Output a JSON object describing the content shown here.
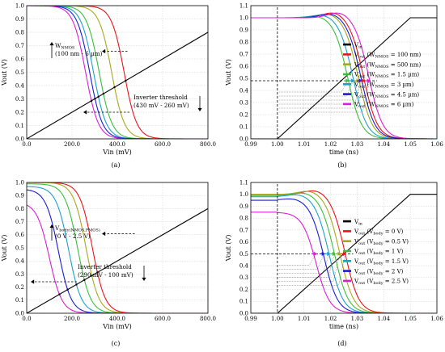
{
  "chart_data": [
    {
      "id": "a",
      "type": "line",
      "caption": "(a)",
      "xlabel": "Vin (mV)",
      "ylabel": "Vout (V)",
      "xlim": [
        0,
        800
      ],
      "ylim": [
        0,
        1.0
      ],
      "xticks": [
        0,
        200,
        400,
        600,
        800
      ],
      "xtick_labels": [
        "0.0",
        "200.0",
        "400.0",
        "600.0",
        "800.0"
      ],
      "yticks": [
        0,
        0.1,
        0.2,
        0.3,
        0.4,
        0.5,
        0.6,
        0.7,
        0.8,
        0.9,
        1.0
      ],
      "ytick_labels": [
        "0.0",
        "0.1",
        "0.2",
        "0.3",
        "0.4",
        "0.5",
        "0.6",
        "0.7",
        "0.8",
        "0.9",
        "1.0"
      ],
      "grid": true,
      "kind": "vtc",
      "curve_steepness": 28,
      "vin_line": {
        "x": [
          0,
          800
        ],
        "y": [
          0,
          0.8
        ],
        "color": "#000000"
      },
      "series": [
        {
          "color": "#e8141c",
          "vm": 430,
          "vmax": 1.0
        },
        {
          "color": "#a8a81c",
          "vm": 375,
          "vmax": 1.0
        },
        {
          "color": "#3cbe3c",
          "vm": 320,
          "vmax": 1.0
        },
        {
          "color": "#1ea0c8",
          "vm": 295,
          "vmax": 1.0
        },
        {
          "color": "#1c1cd2",
          "vm": 278,
          "vmax": 1.0
        },
        {
          "color": "#dc1ed2",
          "vm": 260,
          "vmax": 1.0
        }
      ],
      "annotations": [
        {
          "lines": [
            "W|NMOS",
            "(100 nm - 6 µm)"
          ]
        },
        {
          "lines": [
            "Inverter threshold",
            "(430 mV - 260 mV)"
          ]
        }
      ]
    },
    {
      "id": "b",
      "type": "line",
      "caption": "(b)",
      "xlabel": "time (ns)",
      "ylabel": "Vout (V)",
      "xlim": [
        0.99,
        1.06
      ],
      "ylim": [
        0,
        1.1
      ],
      "xticks": [
        0.99,
        1.0,
        1.01,
        1.02,
        1.03,
        1.04,
        1.05,
        1.06
      ],
      "xtick_labels": [
        "0.99",
        "1.00",
        "1.01",
        "1.02",
        "1.03",
        "1.04",
        "1.05",
        "1.06"
      ],
      "yticks": [
        0,
        0.1,
        0.2,
        0.3,
        0.4,
        0.5,
        0.6,
        0.7,
        0.8,
        0.9,
        1.0,
        1.1
      ],
      "ytick_labels": [
        "0.0",
        "0.1",
        "0.2",
        "0.3",
        "0.4",
        "0.5",
        "0.6",
        "0.7",
        "0.8",
        "0.9",
        "1.0",
        "1.1"
      ],
      "grid": true,
      "kind": "transient",
      "half_level": 0.48,
      "vin_line": {
        "x": [
          0.99,
          1.0,
          1.05,
          1.06
        ],
        "y": [
          0,
          0,
          1.0,
          1.0
        ],
        "color": "#000000"
      },
      "series": [
        {
          "color": "#e8141c",
          "v0": 1.0,
          "t50": 1.0325,
          "tau": 0.0026,
          "overshoot": 0.05
        },
        {
          "color": "#a8a81c",
          "v0": 1.0,
          "t50": 1.0305,
          "tau": 0.0026,
          "overshoot": 0.04
        },
        {
          "color": "#3cbe3c",
          "v0": 1.0,
          "t50": 1.0265,
          "tau": 0.0026,
          "overshoot": 0.02
        },
        {
          "color": "#1ea0c8",
          "v0": 1.0,
          "t50": 1.0285,
          "tau": 0.0026,
          "overshoot": 0.03
        },
        {
          "color": "#1c1cd2",
          "v0": 1.0,
          "t50": 1.0315,
          "tau": 0.0026,
          "overshoot": 0.04
        },
        {
          "color": "#dc1ed2",
          "v0": 1.0,
          "t50": 1.0345,
          "tau": 0.0026,
          "overshoot": 0.05
        }
      ],
      "legend": {
        "placement": "right",
        "entries": [
          {
            "color": "#000000",
            "label": "V|in"
          },
          {
            "color": "#e8141c",
            "label": "V|out| (W|NMOS| = 100 nm)"
          },
          {
            "color": "#a8a81c",
            "label": "V|out| (W|NMOS| = 500 nm)"
          },
          {
            "color": "#3cbe3c",
            "label": "V|out| (W|NMOS| = 1.5 µm)"
          },
          {
            "color": "#1ea0c8",
            "label": "V|out| (W|NMOS| = 3 µm)"
          },
          {
            "color": "#1c1cd2",
            "label": "V|out| (W|NMOS| = 4.5 µm)"
          },
          {
            "color": "#dc1ed2",
            "label": "V|out| (W|NMOS| = 6 µm)"
          }
        ]
      }
    },
    {
      "id": "c",
      "type": "line",
      "caption": "(c)",
      "xlabel": "Vin (mV)",
      "ylabel": "Vout (V)",
      "xlim": [
        0,
        800
      ],
      "ylim": [
        0,
        1.0
      ],
      "xticks": [
        0,
        200,
        400,
        600,
        800
      ],
      "xtick_labels": [
        "0.0",
        "200.0",
        "400.0",
        "600.0",
        "800.0"
      ],
      "yticks": [
        0,
        0.1,
        0.2,
        0.3,
        0.4,
        0.5,
        0.6,
        0.7,
        0.8,
        0.9,
        1.0
      ],
      "ytick_labels": [
        "0.0",
        "0.1",
        "0.2",
        "0.3",
        "0.4",
        "0.5",
        "0.6",
        "0.7",
        "0.8",
        "0.9",
        "1.0"
      ],
      "grid": true,
      "kind": "vtc",
      "curve_steepness": 28,
      "vin_line": {
        "x": [
          0,
          800
        ],
        "y": [
          0,
          0.8
        ],
        "color": "#000000"
      },
      "series": [
        {
          "color": "#e8141c",
          "vm": 290,
          "vmax": 1.0
        },
        {
          "color": "#a8a81c",
          "vm": 262,
          "vmax": 1.0
        },
        {
          "color": "#3cbe3c",
          "vm": 225,
          "vmax": 0.99
        },
        {
          "color": "#1ea0c8",
          "vm": 185,
          "vmax": 0.97
        },
        {
          "color": "#1c1cd2",
          "vm": 140,
          "vmax": 0.95
        },
        {
          "color": "#dc1ed2",
          "vm": 100,
          "vmax": 0.85
        }
      ],
      "annotations": [
        {
          "lines": [
            "V|body(NMOS,PMOS)",
            "(0 V - 2.5 V)"
          ]
        },
        {
          "lines": [
            "Inverter threshold",
            "(290 mV - 100 mV)"
          ]
        }
      ]
    },
    {
      "id": "d",
      "type": "line",
      "caption": "(d)",
      "xlabel": "time (ns)",
      "ylabel": "Vout (V)",
      "xlim": [
        0.99,
        1.06
      ],
      "ylim": [
        0,
        1.1
      ],
      "xticks": [
        0.99,
        1.0,
        1.01,
        1.02,
        1.03,
        1.04,
        1.05,
        1.06
      ],
      "xtick_labels": [
        "0.99",
        "1.00",
        "1.01",
        "1.02",
        "1.03",
        "1.04",
        "1.05",
        "1.06"
      ],
      "yticks": [
        0,
        0.1,
        0.2,
        0.3,
        0.4,
        0.5,
        0.6,
        0.7,
        0.8,
        0.9,
        1.0,
        1.1
      ],
      "ytick_labels": [
        "0.0",
        "0.1",
        "0.2",
        "0.3",
        "0.4",
        "0.5",
        "0.6",
        "0.7",
        "0.8",
        "0.9",
        "1.0",
        "1.1"
      ],
      "grid": true,
      "kind": "transient",
      "half_level": 0.5,
      "vin_line": {
        "x": [
          0.99,
          1.0,
          1.05,
          1.06
        ],
        "y": [
          0,
          0,
          1.0,
          1.0
        ],
        "color": "#000000"
      },
      "series": [
        {
          "color": "#e8141c",
          "v0": 1.0,
          "t50": 1.0255,
          "tau": 0.0026,
          "overshoot": 0.04
        },
        {
          "color": "#a8a81c",
          "v0": 1.0,
          "t50": 1.0235,
          "tau": 0.0026,
          "overshoot": 0.035
        },
        {
          "color": "#3cbe3c",
          "v0": 0.99,
          "t50": 1.0215,
          "tau": 0.0026,
          "overshoot": 0.03
        },
        {
          "color": "#1ea0c8",
          "v0": 0.98,
          "t50": 1.0195,
          "tau": 0.0026,
          "overshoot": 0.025
        },
        {
          "color": "#1c1cd2",
          "v0": 0.95,
          "t50": 1.0175,
          "tau": 0.0026,
          "overshoot": 0.02
        },
        {
          "color": "#dc1ed2",
          "v0": 0.85,
          "t50": 1.0145,
          "tau": 0.0026,
          "overshoot": 0.0
        }
      ],
      "legend": {
        "placement": "right",
        "entries": [
          {
            "color": "#000000",
            "label": "V|in"
          },
          {
            "color": "#e8141c",
            "label": "V|out| (V|body| = 0 V)"
          },
          {
            "color": "#a8a81c",
            "label": "V|out| (V|body| = 0.5 V)"
          },
          {
            "color": "#3cbe3c",
            "label": "V|out| (V|body| = 1 V)"
          },
          {
            "color": "#1ea0c8",
            "label": "V|out| (V|body| = 1.5 V)"
          },
          {
            "color": "#1c1cd2",
            "label": "V|out| (V|body| = 2 V)"
          },
          {
            "color": "#dc1ed2",
            "label": "V|out| (V|body| = 2.5 V)"
          }
        ]
      }
    }
  ]
}
